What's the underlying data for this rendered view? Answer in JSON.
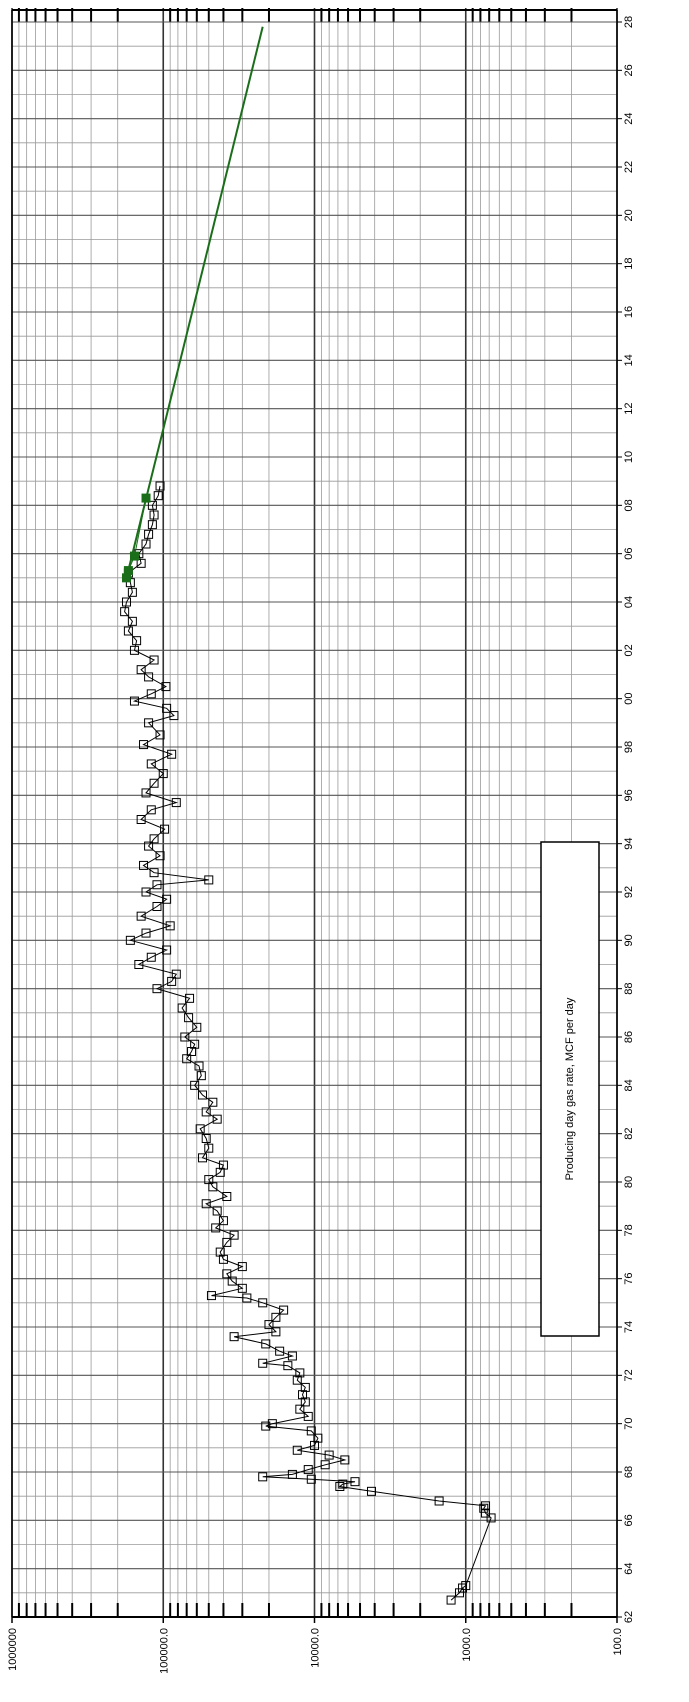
{
  "chart_data": {
    "type": "line",
    "log_y": true,
    "grid": true,
    "orientation": "rotated",
    "annotation": "Producing day gas rate, MCF per day",
    "xlim": [
      1962,
      2028
    ],
    "xticks": [
      {
        "value": 1962,
        "label": "62"
      },
      {
        "value": 1964,
        "label": "64"
      },
      {
        "value": 1966,
        "label": "66"
      },
      {
        "value": 1968,
        "label": "68"
      },
      {
        "value": 1970,
        "label": "70"
      },
      {
        "value": 1972,
        "label": "72"
      },
      {
        "value": 1974,
        "label": "74"
      },
      {
        "value": 1976,
        "label": "76"
      },
      {
        "value": 1978,
        "label": "78"
      },
      {
        "value": 1980,
        "label": "80"
      },
      {
        "value": 1982,
        "label": "82"
      },
      {
        "value": 1984,
        "label": "84"
      },
      {
        "value": 1986,
        "label": "86"
      },
      {
        "value": 1988,
        "label": "88"
      },
      {
        "value": 1990,
        "label": "90"
      },
      {
        "value": 1992,
        "label": "92"
      },
      {
        "value": 1994,
        "label": "94"
      },
      {
        "value": 1996,
        "label": "96"
      },
      {
        "value": 1998,
        "label": "98"
      },
      {
        "value": 2000,
        "label": "00"
      },
      {
        "value": 2002,
        "label": "02"
      },
      {
        "value": 2004,
        "label": "04"
      },
      {
        "value": 2006,
        "label": "06"
      },
      {
        "value": 2008,
        "label": "08"
      },
      {
        "value": 2010,
        "label": "10"
      },
      {
        "value": 2012,
        "label": "12"
      },
      {
        "value": 2014,
        "label": "14"
      },
      {
        "value": 2016,
        "label": "16"
      },
      {
        "value": 2018,
        "label": "18"
      },
      {
        "value": 2020,
        "label": "20"
      },
      {
        "value": 2022,
        "label": "22"
      },
      {
        "value": 2024,
        "label": "24"
      },
      {
        "value": 2026,
        "label": "26"
      },
      {
        "value": 2028,
        "label": "28"
      }
    ],
    "xminorticks": [
      1963,
      1965,
      1967,
      1969,
      1971,
      1973,
      1975,
      1977,
      1979,
      1981,
      1983,
      1985,
      1987,
      1989,
      1991,
      1993,
      1995,
      1997,
      1999,
      2001,
      2003,
      2005,
      2007,
      2009,
      2011,
      2013,
      2015,
      2017,
      2019,
      2021,
      2023,
      2025,
      2027
    ],
    "ylim": [
      100,
      1000000
    ],
    "yticks": [
      {
        "value": 100,
        "label": "100.0"
      },
      {
        "value": 1000,
        "label": "1000.0"
      },
      {
        "value": 10000,
        "label": "10000.0"
      },
      {
        "value": 100000,
        "label": "100000.0"
      },
      {
        "value": 1000000,
        "label": "1000000"
      }
    ],
    "yminorticks": [
      200,
      300,
      400,
      500,
      600,
      700,
      800,
      900,
      2000,
      3000,
      4000,
      5000,
      6000,
      7000,
      8000,
      9000,
      20000,
      30000,
      40000,
      50000,
      60000,
      70000,
      80000,
      90000,
      200000,
      300000,
      400000,
      500000,
      600000,
      700000,
      800000,
      900000
    ],
    "series": [
      {
        "color": "#000000",
        "marker": "square-open",
        "x": [
          1962.7,
          1963.0,
          1963.2,
          1963.3,
          1966.1,
          1966.3,
          1966.5,
          1966.6,
          1966.8,
          1967.2,
          1967.4,
          1967.5,
          1967.6,
          1967.7,
          1967.8,
          1967.9,
          1968.1,
          1968.3,
          1968.5,
          1968.7,
          1968.9,
          1969.1,
          1969.4,
          1969.7,
          1969.9,
          1970.0,
          1970.3,
          1970.6,
          1970.9,
          1971.2,
          1971.5,
          1971.8,
          1972.1,
          1972.4,
          1972.5,
          1972.8,
          1973.0,
          1973.3,
          1973.6,
          1973.8,
          1974.1,
          1974.4,
          1974.7,
          1975.0,
          1975.2,
          1975.3,
          1975.6,
          1975.9,
          1976.2,
          1976.5,
          1976.8,
          1977.1,
          1977.5,
          1977.8,
          1978.1,
          1978.4,
          1978.8,
          1979.1,
          1979.4,
          1979.8,
          1980.1,
          1980.4,
          1980.7,
          1981.0,
          1981.4,
          1981.8,
          1982.2,
          1982.6,
          1982.9,
          1983.3,
          1983.6,
          1984.0,
          1984.4,
          1984.8,
          1985.1,
          1985.4,
          1985.7,
          1986.0,
          1986.4,
          1986.8,
          1987.2,
          1987.6,
          1988.0,
          1988.3,
          1988.6,
          1989.0,
          1989.3,
          1989.6,
          1990.0,
          1990.3,
          1990.6,
          1991.0,
          1991.4,
          1991.7,
          1992.0,
          1992.3,
          1992.5,
          1992.8,
          1993.1,
          1993.5,
          1993.9,
          1994.2,
          1994.6,
          1995.0,
          1995.4,
          1995.7,
          1996.1,
          1996.5,
          1996.9,
          1997.3,
          1997.7,
          1998.1,
          1998.5,
          1999.0,
          1999.3,
          1999.6,
          1999.9,
          2000.2,
          2000.5,
          2000.9,
          2001.2,
          2001.6,
          2002.0,
          2002.4,
          2002.8,
          2003.2,
          2003.6,
          2004.0,
          2004.4,
          2004.8,
          2005.2,
          2005.6,
          2006.0,
          2006.4,
          2006.8,
          2007.2,
          2007.6,
          2008.0,
          2008.4,
          2008.8
        ],
        "values": [
          1250,
          1100,
          1050,
          1000,
          680,
          740,
          760,
          740,
          1500,
          4200,
          6800,
          6500,
          5400,
          10500,
          22000,
          14000,
          11000,
          8500,
          6300,
          8000,
          13000,
          10000,
          9500,
          10500,
          21000,
          19000,
          11000,
          12500,
          11500,
          12000,
          11500,
          13000,
          12500,
          15000,
          22000,
          14000,
          17000,
          21000,
          34000,
          18000,
          20000,
          18000,
          16000,
          22000,
          28000,
          48000,
          30000,
          35000,
          38000,
          30000,
          40000,
          42000,
          38000,
          34000,
          45000,
          40000,
          44000,
          52000,
          38000,
          47000,
          50000,
          42000,
          40000,
          55000,
          50000,
          52000,
          57000,
          44000,
          52000,
          47000,
          55000,
          62000,
          56000,
          58000,
          70000,
          65000,
          62000,
          72000,
          60000,
          68000,
          75000,
          67000,
          110000,
          88000,
          82000,
          145000,
          120000,
          95000,
          165000,
          130000,
          90000,
          140000,
          110000,
          95000,
          130000,
          110000,
          50000,
          115000,
          135000,
          105000,
          125000,
          115000,
          98000,
          140000,
          120000,
          82000,
          130000,
          115000,
          100000,
          120000,
          88000,
          135000,
          105000,
          125000,
          85000,
          95000,
          155000,
          120000,
          96000,
          125000,
          140000,
          115000,
          155000,
          150000,
          170000,
          160000,
          180000,
          175000,
          160000,
          165000,
          170000,
          140000,
          145000,
          130000,
          125000,
          118000,
          115000,
          118000,
          108000,
          105000
        ]
      },
      {
        "color": "#1a6e1a",
        "marker": "square-filled",
        "x": [
          2005.0,
          2005.3,
          2005.9,
          2008.3
        ],
        "values": [
          175000,
          170000,
          155000,
          130000
        ]
      },
      {
        "color": "#1a6e1a",
        "marker": "none",
        "x": [
          2005.0,
          2027.8
        ],
        "values": [
          175000,
          22000
        ]
      }
    ]
  }
}
